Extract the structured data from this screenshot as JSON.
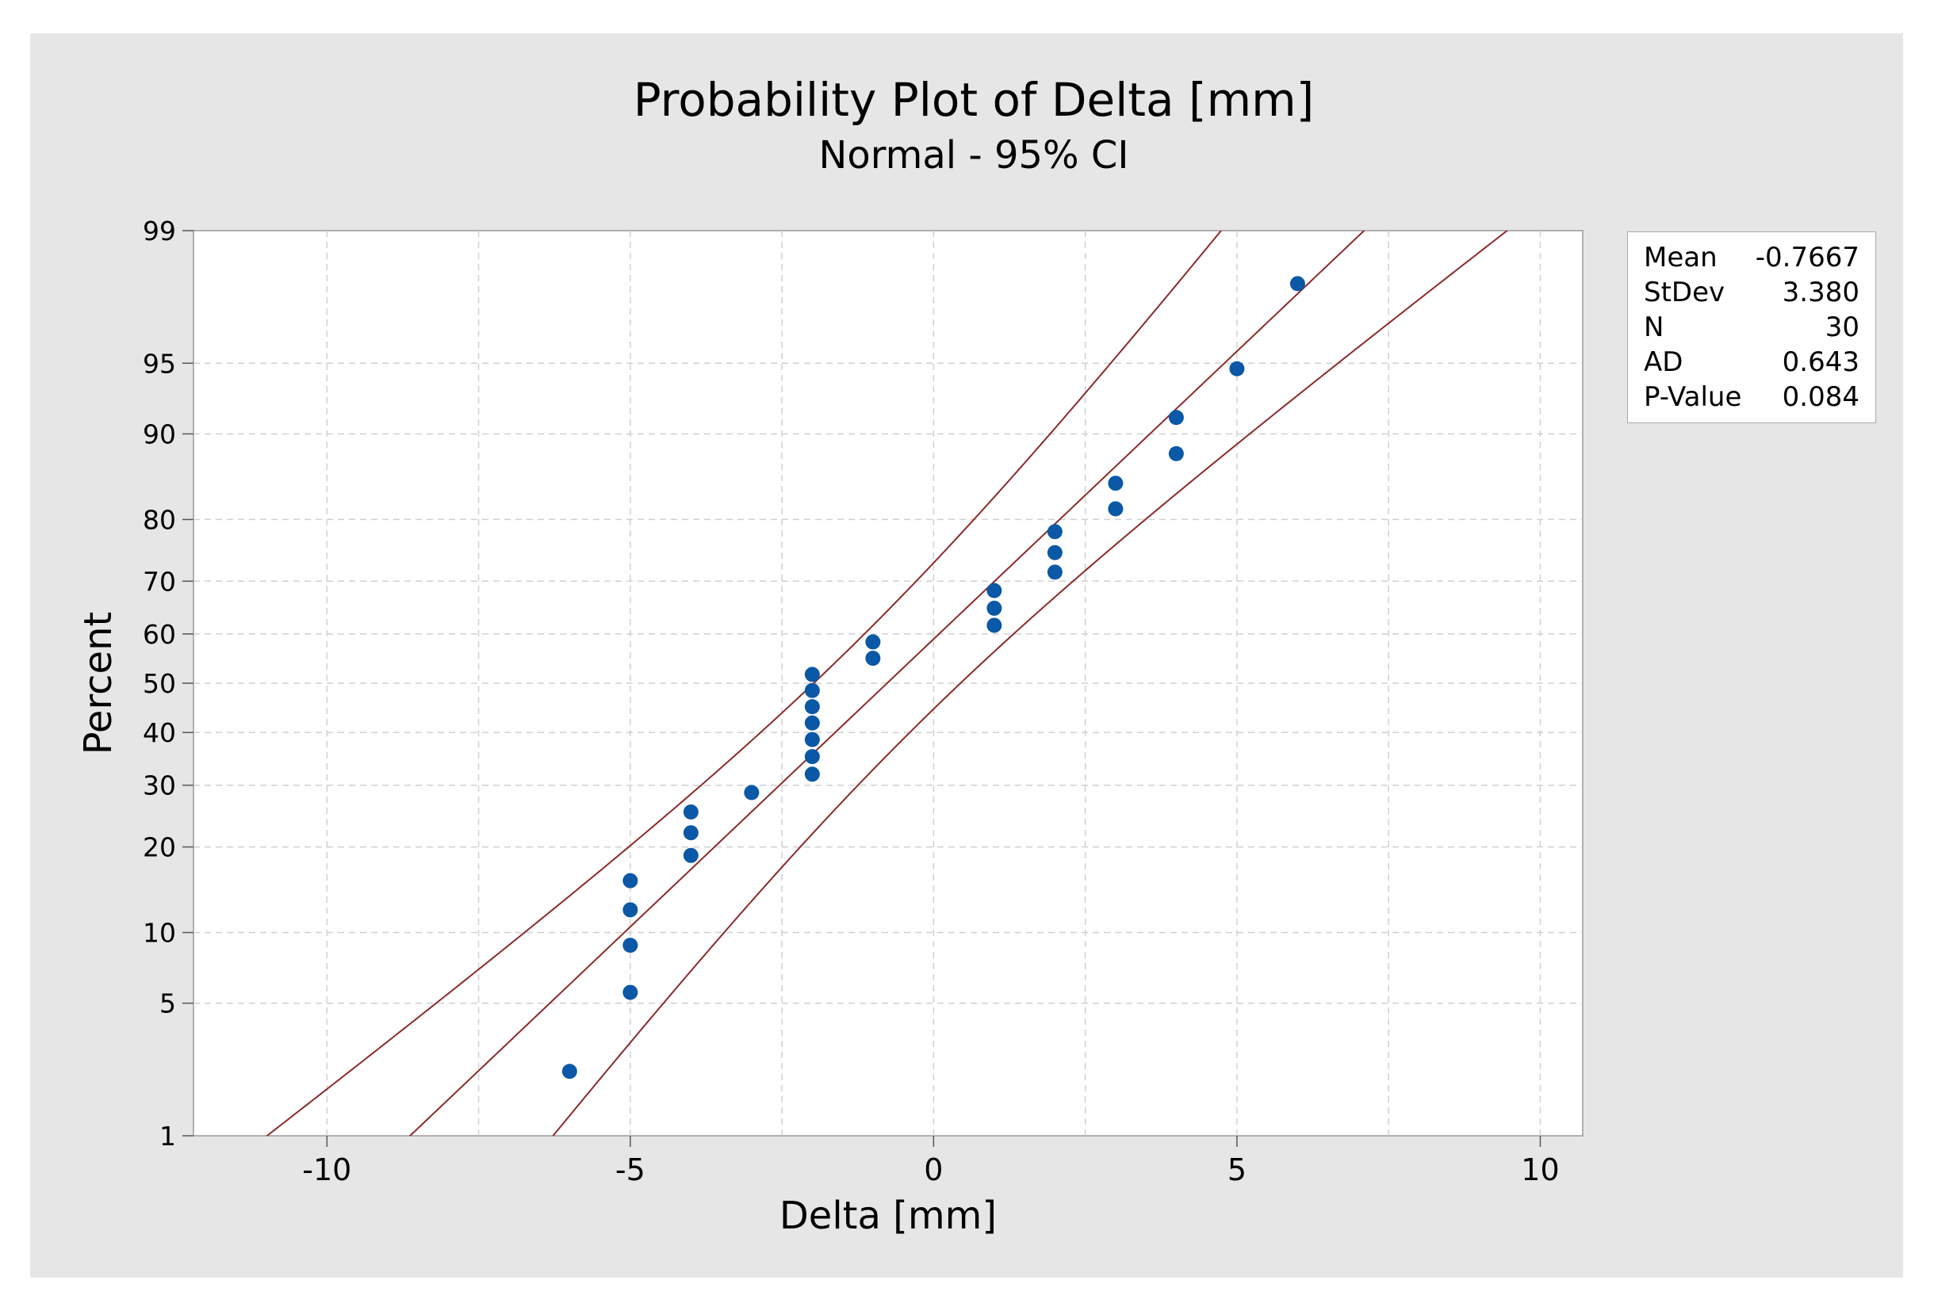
{
  "chart_data": {
    "type": "scatter",
    "title": "Probability Plot of Delta [mm]",
    "subtitle": "Normal - 95% CI",
    "xlabel": "Delta [mm]",
    "ylabel": "Percent",
    "xlim": [
      -12.2,
      10.7
    ],
    "ylim": [
      1,
      99
    ],
    "y_scale": "normal-probability",
    "x_ticks": [
      -10,
      -5,
      0,
      5,
      10
    ],
    "x_tick_labels": [
      "-10",
      "-5",
      "0",
      "5",
      "10"
    ],
    "y_ticks": [
      1,
      5,
      10,
      20,
      30,
      40,
      50,
      60,
      70,
      80,
      90,
      95,
      99
    ],
    "y_tick_labels": [
      "1",
      "5",
      "10",
      "20",
      "30",
      "40",
      "50",
      "60",
      "70",
      "80",
      "90",
      "95",
      "99"
    ],
    "grid": true,
    "points": [
      {
        "x": -6,
        "y": 2.3
      },
      {
        "x": -5,
        "y": 5.6
      },
      {
        "x": -5,
        "y": 8.9
      },
      {
        "x": -5,
        "y": 12.2
      },
      {
        "x": -5,
        "y": 15.5
      },
      {
        "x": -4,
        "y": 18.8
      },
      {
        "x": -4,
        "y": 22.1
      },
      {
        "x": -4,
        "y": 25.4
      },
      {
        "x": -3,
        "y": 28.7
      },
      {
        "x": -2,
        "y": 32.0
      },
      {
        "x": -2,
        "y": 35.3
      },
      {
        "x": -2,
        "y": 38.6
      },
      {
        "x": -2,
        "y": 41.9
      },
      {
        "x": -2,
        "y": 45.2
      },
      {
        "x": -2,
        "y": 48.5
      },
      {
        "x": -2,
        "y": 51.8
      },
      {
        "x": -1,
        "y": 55.1
      },
      {
        "x": -1,
        "y": 58.4
      },
      {
        "x": 1,
        "y": 61.7
      },
      {
        "x": 1,
        "y": 65.0
      },
      {
        "x": 1,
        "y": 68.3
      },
      {
        "x": 2,
        "y": 71.6
      },
      {
        "x": 2,
        "y": 74.9
      },
      {
        "x": 2,
        "y": 78.2
      },
      {
        "x": 3,
        "y": 81.5
      },
      {
        "x": 3,
        "y": 84.8
      },
      {
        "x": 4,
        "y": 88.1
      },
      {
        "x": 4,
        "y": 91.4
      },
      {
        "x": 5,
        "y": 94.7
      },
      {
        "x": 6,
        "y": 98.0
      }
    ],
    "fit_line": {
      "mean": -0.7667,
      "stdev": 3.38
    },
    "ci_level": 0.95,
    "n": 30,
    "colors": {
      "points": "#0a58a6",
      "lines": "#8b2a2a",
      "grid": "#d0d0d0",
      "background": "#e6e6e6"
    }
  },
  "stats": [
    {
      "label": "Mean",
      "value": "-0.7667"
    },
    {
      "label": "StDev",
      "value": "3.380"
    },
    {
      "label": "N",
      "value": "30"
    },
    {
      "label": "AD",
      "value": "0.643"
    },
    {
      "label": "P-Value",
      "value": "0.084"
    }
  ]
}
